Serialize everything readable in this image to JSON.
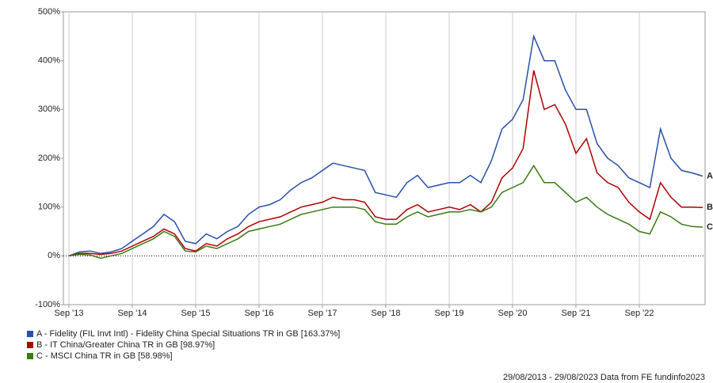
{
  "chart_data": {
    "type": "line",
    "categories": [
      "Sep '13",
      null,
      null,
      null,
      null,
      null,
      "Sep '14",
      null,
      null,
      null,
      null,
      null,
      "Sep '15",
      null,
      null,
      null,
      null,
      null,
      "Sep '16",
      null,
      null,
      null,
      null,
      null,
      "Sep '17",
      null,
      null,
      null,
      null,
      null,
      "Sep '18",
      null,
      null,
      null,
      null,
      null,
      "Sep '19",
      null,
      null,
      null,
      null,
      null,
      "Sep '20",
      null,
      null,
      null,
      null,
      null,
      "Sep '21",
      null,
      null,
      null,
      null,
      null,
      "Sep '22",
      null,
      null,
      null,
      null,
      null,
      null
    ],
    "series": [
      {
        "name": "A - Fidelity (FIL Invt Intl) - Fidelity China Special Situations TR in GB [163.37%]",
        "end_label": "A",
        "color": "#2a4fa8",
        "values": [
          0,
          8,
          10,
          5,
          8,
          15,
          30,
          45,
          60,
          85,
          70,
          30,
          25,
          45,
          35,
          50,
          60,
          85,
          100,
          105,
          115,
          135,
          150,
          160,
          175,
          190,
          185,
          180,
          175,
          130,
          125,
          120,
          150,
          165,
          140,
          145,
          150,
          150,
          165,
          150,
          195,
          260,
          280,
          320,
          450,
          400,
          400,
          340,
          300,
          300,
          230,
          200,
          185,
          160,
          150,
          140,
          260,
          200,
          175,
          170,
          163.37
        ]
      },
      {
        "name": "B - IT China/Greater China TR in GB [98.97%]",
        "end_label": "B",
        "color": "#b00000",
        "values": [
          0,
          5,
          5,
          3,
          5,
          10,
          20,
          30,
          40,
          55,
          45,
          15,
          10,
          25,
          20,
          35,
          45,
          60,
          70,
          75,
          80,
          90,
          100,
          105,
          110,
          120,
          115,
          115,
          110,
          80,
          75,
          75,
          95,
          105,
          90,
          95,
          100,
          95,
          105,
          90,
          110,
          160,
          180,
          220,
          380,
          300,
          310,
          270,
          210,
          240,
          170,
          150,
          140,
          110,
          90,
          75,
          150,
          120,
          100,
          100,
          98.97
        ]
      },
      {
        "name": "C - MSCI China TR in GB [58.98%]",
        "end_label": "C",
        "color": "#3a7a12",
        "values": [
          0,
          3,
          2,
          -5,
          0,
          5,
          15,
          25,
          35,
          50,
          40,
          10,
          8,
          20,
          15,
          25,
          35,
          50,
          55,
          60,
          65,
          75,
          85,
          90,
          95,
          100,
          100,
          100,
          95,
          70,
          65,
          65,
          80,
          90,
          80,
          85,
          90,
          90,
          95,
          90,
          100,
          130,
          140,
          150,
          185,
          150,
          150,
          130,
          110,
          120,
          100,
          85,
          75,
          65,
          50,
          45,
          90,
          80,
          65,
          60,
          58.98
        ]
      }
    ],
    "ylim": [
      -100,
      500
    ],
    "yticks": [
      {
        "value": -100,
        "label": "-100%"
      },
      {
        "value": 0,
        "label": "0%"
      },
      {
        "value": 100,
        "label": "100%"
      },
      {
        "value": 200,
        "label": "200%"
      },
      {
        "value": 300,
        "label": "300%"
      },
      {
        "value": 400,
        "label": "400%"
      },
      {
        "value": 500,
        "label": "500%"
      }
    ],
    "grid": true,
    "footer": "29/08/2013 - 29/08/2023 Data from FE fundinfo2023"
  }
}
